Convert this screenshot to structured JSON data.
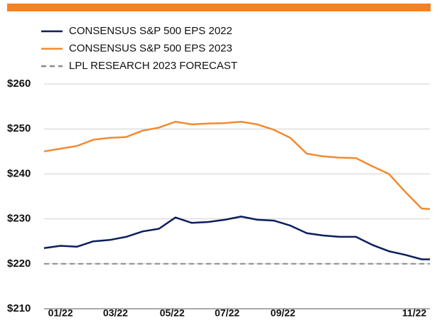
{
  "chart_data": {
    "type": "line",
    "x": [
      0,
      2,
      4,
      6,
      8,
      10,
      12,
      14,
      16,
      18,
      20,
      22,
      24,
      26,
      28,
      30,
      32,
      34,
      36,
      38,
      40,
      42,
      44,
      46,
      47
    ],
    "series": [
      {
        "name": "CONSENSUS S&P 500 EPS 2022",
        "color": "#0b1f5c",
        "dashed": false,
        "values": [
          223.5,
          224,
          223.8,
          225,
          225.3,
          226,
          227.2,
          227.8,
          230.3,
          229.1,
          229.3,
          229.8,
          230.5,
          229.8,
          229.6,
          228.5,
          226.8,
          226.3,
          226,
          226,
          224.2,
          222.8,
          222,
          221,
          221
        ]
      },
      {
        "name": "CONSENSUS S&P 500 EPS 2023",
        "color": "#f28a30",
        "dashed": false,
        "values": [
          245,
          245.6,
          246.2,
          247.6,
          248,
          248.2,
          249.6,
          250.3,
          251.6,
          251,
          251.2,
          251.3,
          251.6,
          251,
          249.8,
          248,
          244.5,
          243.9,
          243.6,
          243.5,
          241.7,
          240,
          236,
          232.3,
          232.2
        ]
      },
      {
        "name": "LPL RESEARCH 2023 FORECAST",
        "color": "#8a8a8f",
        "dashed": true,
        "values": [
          220,
          220,
          220,
          220,
          220,
          220,
          220,
          220,
          220,
          220,
          220,
          220,
          220,
          220,
          220,
          220,
          220,
          220,
          220,
          220,
          220,
          220,
          220,
          220,
          220
        ]
      }
    ],
    "xlim": [
      0,
      47
    ],
    "xticks": [
      {
        "value": 2,
        "label": "01/22"
      },
      {
        "value": 8.7,
        "label": "03/22"
      },
      {
        "value": 15.6,
        "label": "05/22"
      },
      {
        "value": 22.3,
        "label": "07/22"
      },
      {
        "value": 29.1,
        "label": "09/22"
      },
      {
        "value": 45.1,
        "label": "11/22"
      }
    ],
    "ylim": [
      210,
      260
    ],
    "yticks": [
      {
        "value": 210,
        "label": "$210"
      },
      {
        "value": 220,
        "label": "$220"
      },
      {
        "value": 230,
        "label": "$230"
      },
      {
        "value": 240,
        "label": "$240"
      },
      {
        "value": 250,
        "label": "$250"
      },
      {
        "value": 260,
        "label": "$260"
      }
    ],
    "grid": true,
    "header_color": "#f58220"
  }
}
